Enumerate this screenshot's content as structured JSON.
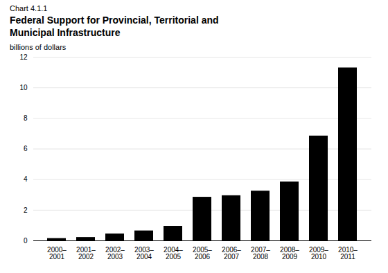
{
  "chart_data": {
    "type": "bar",
    "subtitle": "Chart 4.1.1",
    "title": "Federal Support for Provincial, Territorial and\nMunicipal Infrastructure",
    "ylabel": "billions of dollars",
    "categories": [
      "2000–\n2001",
      "2001–\n2002",
      "2002–\n2003",
      "2003–\n2004",
      "2004–\n2005",
      "2005–\n2006",
      "2006–\n2007",
      "2007–\n2008",
      "2008–\n2009",
      "2009–\n2010",
      "2010–\n2011"
    ],
    "values": [
      0.15,
      0.22,
      0.45,
      0.65,
      0.95,
      2.85,
      2.95,
      3.25,
      3.85,
      6.85,
      11.3
    ],
    "ylim": [
      0,
      12
    ],
    "yticks": [
      0,
      2,
      4,
      6,
      8,
      10,
      12
    ],
    "grid": true
  }
}
